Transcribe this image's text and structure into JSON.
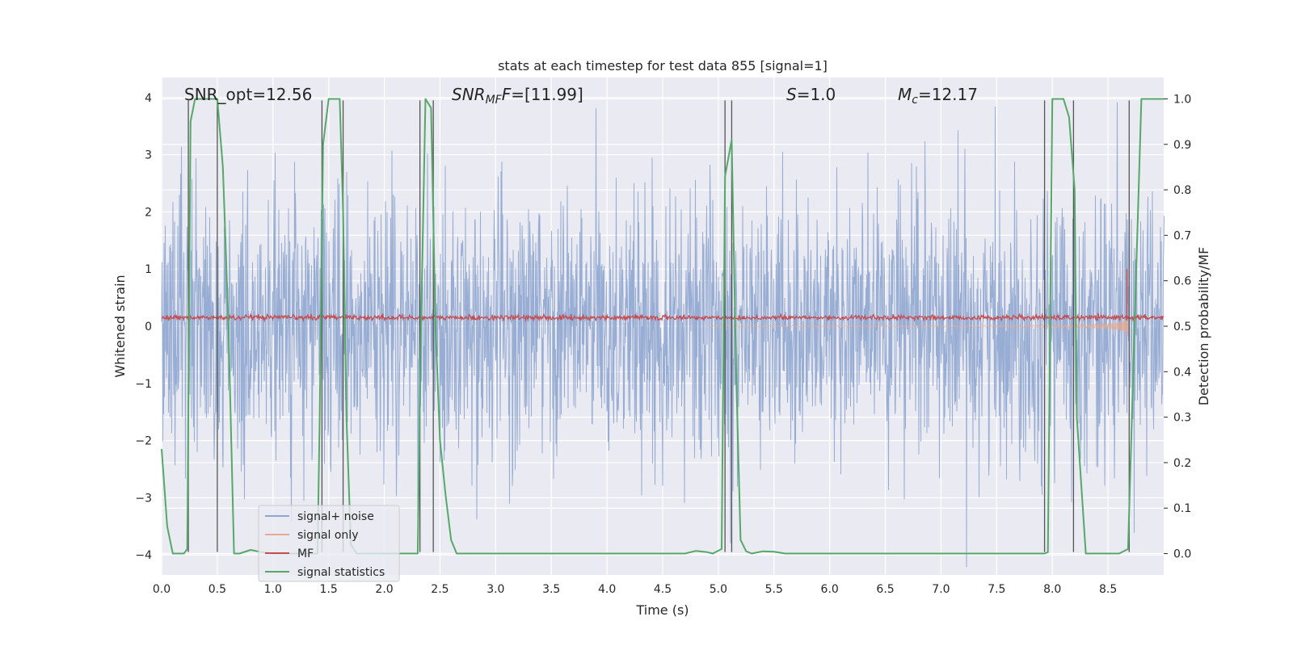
{
  "chart_data": {
    "type": "line",
    "title": "stats at each timestep for test data 855 [signal=1]",
    "xlabel": "Time (s)",
    "ylabel": "Whitened strain",
    "y2label": "Detection probability/MF",
    "xlim": [
      0,
      9.0
    ],
    "ylim": [
      -4.35,
      4.35
    ],
    "y2lim": [
      -0.047,
      1.047
    ],
    "x_ticks": [
      "0.0",
      "0.5",
      "1.0",
      "1.5",
      "2.0",
      "2.5",
      "3.0",
      "3.5",
      "4.0",
      "4.5",
      "5.0",
      "5.5",
      "6.0",
      "6.5",
      "7.0",
      "7.5",
      "8.0",
      "8.5"
    ],
    "y_ticks": [
      "4",
      "3",
      "2",
      "1",
      "0",
      "−1",
      "−2",
      "−3",
      "−4"
    ],
    "y2_ticks": [
      "1.0",
      "0.9",
      "0.8",
      "0.7",
      "0.6",
      "0.5",
      "0.4",
      "0.3",
      "0.2",
      "0.1",
      "0.0"
    ],
    "grid": true,
    "legend_position": "lower-left",
    "annotations": {
      "snr_opt": "SNR_opt=12.56",
      "snr_mf_name": "SNR",
      "snr_mf_sub": "MF",
      "snr_mf_value": "=[11.99]",
      "s_name": "S",
      "s_value": "=1.0",
      "mc_name": "M",
      "mc_sub": "c",
      "mc_value": "=12.17"
    },
    "series": [
      {
        "name": "signal+ noise",
        "color": "#8fa6cf",
        "kind": "noise",
        "amplitude_rms": 1.0,
        "x_range": [
          0,
          9.0
        ]
      },
      {
        "name": "signal only",
        "color": "#e8a98f",
        "kind": "chirp",
        "x_range": [
          4.9,
          8.68
        ],
        "max_amplitude": 2.1
      },
      {
        "name": "MF",
        "color": "#c44e52",
        "kind": "noise-band",
        "baseline": 0.15,
        "spike_x": 8.67,
        "spike_y": 1.0
      },
      {
        "name": "signal statistics",
        "color": "#55a868",
        "x": [
          0.0,
          0.05,
          0.1,
          0.15,
          0.2,
          0.23,
          0.26,
          0.3,
          0.35,
          0.4,
          0.45,
          0.5,
          0.55,
          0.6,
          0.65,
          0.7,
          0.8,
          0.9,
          1.0,
          1.2,
          1.4,
          1.42,
          1.45,
          1.5,
          1.55,
          1.6,
          1.63,
          1.66,
          1.7,
          1.75,
          1.8,
          2.0,
          2.2,
          2.3,
          2.33,
          2.37,
          2.42,
          2.46,
          2.5,
          2.55,
          2.6,
          2.65,
          2.7,
          3.0,
          4.0,
          4.6,
          4.7,
          4.8,
          4.9,
          4.95,
          5.03,
          5.06,
          5.09,
          5.12,
          5.16,
          5.2,
          5.25,
          5.3,
          5.4,
          5.5,
          5.6,
          6.0,
          7.0,
          7.88,
          7.93,
          7.96,
          8.0,
          8.1,
          8.15,
          8.2,
          8.22,
          8.3,
          8.5,
          8.6,
          8.68,
          8.75,
          8.8,
          8.9,
          9.0
        ],
        "y": [
          0.23,
          0.06,
          0.0,
          0.0,
          0.0,
          0.01,
          0.95,
          1.0,
          1.0,
          1.0,
          1.0,
          1.0,
          0.85,
          0.5,
          0.0,
          0.0,
          0.008,
          0.003,
          0.0,
          0.0,
          0.0,
          0.3,
          0.9,
          1.0,
          1.0,
          1.0,
          0.75,
          0.3,
          0.02,
          0.0,
          0.0,
          0.0,
          0.0,
          0.0,
          0.5,
          1.0,
          0.98,
          0.5,
          0.25,
          0.13,
          0.03,
          0.0,
          0.0,
          0.0,
          0.0,
          0.0,
          0.0,
          0.006,
          0.003,
          0.0,
          0.01,
          0.83,
          0.87,
          0.91,
          0.4,
          0.03,
          0.005,
          0.0,
          0.005,
          0.004,
          0.0,
          0.0,
          0.0,
          0.0,
          0.0,
          0.003,
          1.0,
          1.0,
          0.96,
          0.8,
          0.3,
          0.0,
          0.0,
          0.0,
          0.01,
          0.6,
          1.0,
          1.0,
          1.0
        ]
      }
    ],
    "vertical_lines_x": [
      0.24,
      0.5,
      1.44,
      1.63,
      2.32,
      2.44,
      5.06,
      5.12,
      7.93,
      8.19,
      8.69
    ]
  }
}
